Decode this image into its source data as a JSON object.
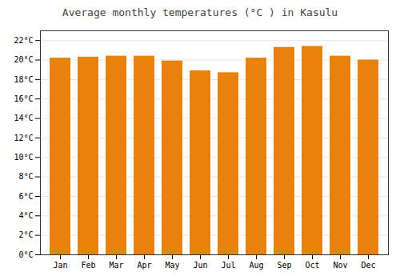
{
  "chart_data": {
    "type": "bar",
    "title": "Average monthly temperatures (°C ) in Kasulu",
    "categories": [
      "Jan",
      "Feb",
      "Mar",
      "Apr",
      "May",
      "Jun",
      "Jul",
      "Aug",
      "Sep",
      "Oct",
      "Nov",
      "Dec"
    ],
    "values": [
      20.2,
      20.3,
      20.4,
      20.4,
      19.9,
      18.9,
      18.7,
      20.2,
      21.3,
      21.4,
      20.4,
      20.0
    ],
    "color": "#E8820A",
    "ylim": [
      0,
      23
    ],
    "yticks": [
      {
        "value": 0,
        "label": "0°C"
      },
      {
        "value": 2,
        "label": "2°C"
      },
      {
        "value": 4,
        "label": "4°C"
      },
      {
        "value": 6,
        "label": "6°C"
      },
      {
        "value": 8,
        "label": "8°C"
      },
      {
        "value": 10,
        "label": "10°C"
      },
      {
        "value": 12,
        "label": "12°C"
      },
      {
        "value": 14,
        "label": "14°C"
      },
      {
        "value": 16,
        "label": "16°C"
      },
      {
        "value": 18,
        "label": "18°C"
      },
      {
        "value": 20,
        "label": "20°C"
      },
      {
        "value": 22,
        "label": "22°C"
      }
    ],
    "grid": true
  }
}
